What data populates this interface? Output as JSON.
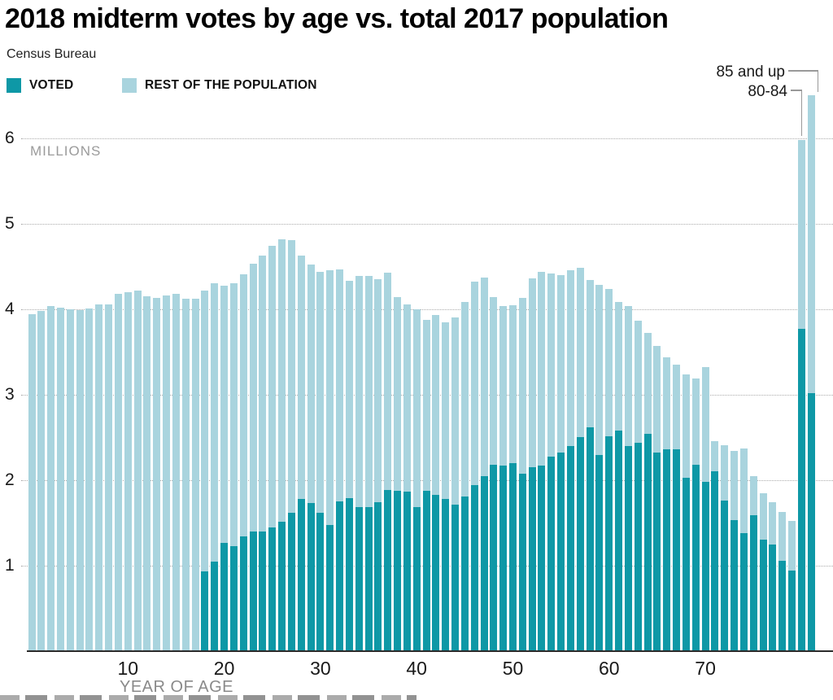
{
  "title": "2018 midterm votes by age vs. total 2017 population",
  "source": "Census Bureau",
  "legend": {
    "voted_label": "VOTED",
    "rest_label": "REST OF THE POPULATION"
  },
  "colors": {
    "voted": "#0e98a6",
    "rest": "#a9d4de",
    "gridline": "#ababab",
    "axis_text_muted": "#8a8a8a"
  },
  "y_axis": {
    "unit_label": "MILLIONS",
    "ticks": [
      1,
      2,
      3,
      4,
      5,
      6
    ]
  },
  "x_axis": {
    "label": "YEAR OF AGE",
    "ticks": [
      10,
      20,
      30,
      40,
      50,
      60,
      70
    ]
  },
  "annotations": {
    "last_bar_label": "85 and up",
    "second_last_bar_label": "80-84"
  },
  "chart_data": {
    "type": "bar",
    "stacked": true,
    "title": "2018 midterm votes by age vs. total 2017 population",
    "xlabel": "YEAR OF AGE",
    "ylabel": "MILLIONS",
    "ylim": [
      0,
      6.6
    ],
    "grid": "dotted-horizontal",
    "legend_position": "top-left",
    "categories": [
      "0",
      "1",
      "2",
      "3",
      "4",
      "5",
      "6",
      "7",
      "8",
      "9",
      "10",
      "11",
      "12",
      "13",
      "14",
      "15",
      "16",
      "17",
      "18",
      "19",
      "20",
      "21",
      "22",
      "23",
      "24",
      "25",
      "26",
      "27",
      "28",
      "29",
      "30",
      "31",
      "32",
      "33",
      "34",
      "35",
      "36",
      "37",
      "38",
      "39",
      "40",
      "41",
      "42",
      "43",
      "44",
      "45",
      "46",
      "47",
      "48",
      "49",
      "50",
      "51",
      "52",
      "53",
      "54",
      "55",
      "56",
      "57",
      "58",
      "59",
      "60",
      "61",
      "62",
      "63",
      "64",
      "65",
      "66",
      "67",
      "68",
      "69",
      "70",
      "71",
      "72",
      "73",
      "74",
      "75",
      "76",
      "77",
      "78",
      "79",
      "80-84",
      "85 and up"
    ],
    "series": [
      {
        "name": "VOTED",
        "color": "#0e98a6",
        "values": [
          0,
          0,
          0,
          0,
          0,
          0,
          0,
          0,
          0,
          0,
          0,
          0,
          0,
          0,
          0,
          0,
          0,
          0,
          0.93,
          1.05,
          1.27,
          1.23,
          1.34,
          1.4,
          1.4,
          1.45,
          1.51,
          1.62,
          1.78,
          1.73,
          1.62,
          1.48,
          1.75,
          1.79,
          1.69,
          1.69,
          1.74,
          1.89,
          1.88,
          1.87,
          1.69,
          1.88,
          1.83,
          1.78,
          1.71,
          1.81,
          1.94,
          2.05,
          2.18,
          2.17,
          2.2,
          2.08,
          2.15,
          2.17,
          2.28,
          2.32,
          2.4,
          2.5,
          2.62,
          2.3,
          2.51,
          2.58,
          2.4,
          2.44,
          2.54,
          2.32,
          2.36,
          2.36,
          2.03,
          2.18,
          1.98,
          2.1,
          1.76,
          1.53,
          1.38,
          1.59,
          1.3,
          1.25,
          1.06,
          0.94,
          3.77,
          3.02
        ]
      },
      {
        "name": "REST OF THE POPULATION",
        "color": "#a9d4de",
        "values": [
          3.94,
          3.98,
          4.04,
          4.02,
          4.0,
          3.99,
          4.01,
          4.06,
          4.06,
          4.18,
          4.2,
          4.22,
          4.15,
          4.13,
          4.16,
          4.18,
          4.12,
          4.12,
          3.29,
          3.25,
          3.01,
          3.07,
          3.07,
          3.13,
          3.23,
          3.29,
          3.31,
          3.19,
          2.85,
          2.79,
          2.82,
          2.98,
          2.72,
          2.54,
          2.7,
          2.7,
          2.61,
          2.54,
          2.26,
          2.19,
          2.31,
          2.0,
          2.1,
          2.07,
          2.19,
          2.28,
          2.38,
          2.32,
          1.96,
          1.87,
          1.85,
          2.05,
          2.21,
          2.27,
          2.14,
          2.08,
          2.06,
          1.99,
          1.72,
          1.99,
          1.73,
          1.51,
          1.64,
          1.43,
          1.18,
          1.25,
          1.08,
          0.99,
          1.21,
          1.01,
          1.34,
          0.36,
          0.65,
          0.81,
          0.99,
          0.46,
          0.55,
          0.49,
          0.57,
          0.58,
          2.21,
          3.48
        ]
      }
    ]
  }
}
